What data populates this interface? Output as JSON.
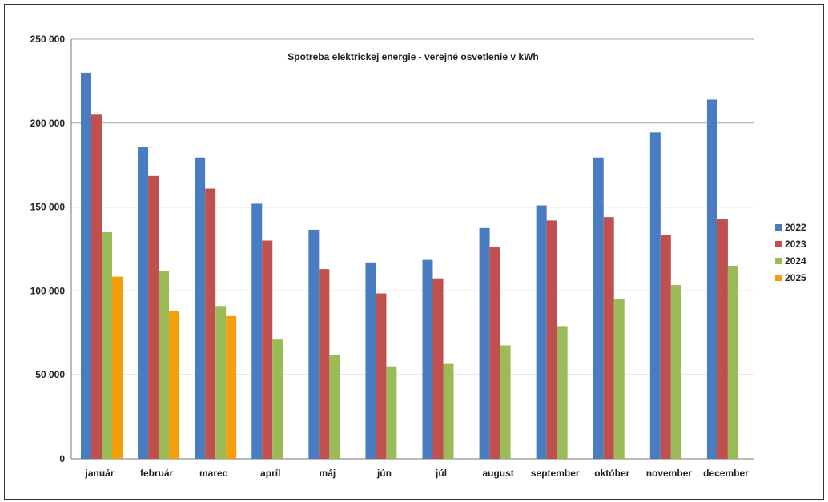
{
  "chart_data": {
    "type": "bar",
    "title": "Spotreba elektrickej energie - verejné osvetlenie v kWh",
    "xlabel": "",
    "ylabel": "",
    "categories": [
      "január",
      "február",
      "marec",
      "apríl",
      "máj",
      "jún",
      "júl",
      "august",
      "september",
      "október",
      "november",
      "december"
    ],
    "ylim": [
      0,
      250000
    ],
    "yticks": [
      0,
      50000,
      100000,
      150000,
      200000,
      250000
    ],
    "ytick_labels": [
      "0",
      "50 000",
      "100 000",
      "150 000",
      "200 000",
      "250 000"
    ],
    "grid": true,
    "legend_position": "right",
    "series": [
      {
        "name": "2022",
        "color": "#4a7cc2",
        "values": [
          230000,
          186000,
          179500,
          152000,
          136500,
          117000,
          118500,
          137500,
          151000,
          179500,
          194500,
          214000
        ]
      },
      {
        "name": "2023",
        "color": "#c0504d",
        "values": [
          205000,
          168500,
          161000,
          130000,
          113000,
          98500,
          107500,
          126000,
          142000,
          144000,
          133500,
          143000
        ]
      },
      {
        "name": "2024",
        "color": "#9bbb59",
        "values": [
          135000,
          112000,
          91000,
          71000,
          62000,
          55000,
          56500,
          67500,
          79000,
          95000,
          103500,
          115000
        ]
      },
      {
        "name": "2025",
        "color": "#f59e0b",
        "values": [
          108500,
          88000,
          85000,
          null,
          null,
          null,
          null,
          null,
          null,
          null,
          null,
          null
        ]
      }
    ]
  }
}
